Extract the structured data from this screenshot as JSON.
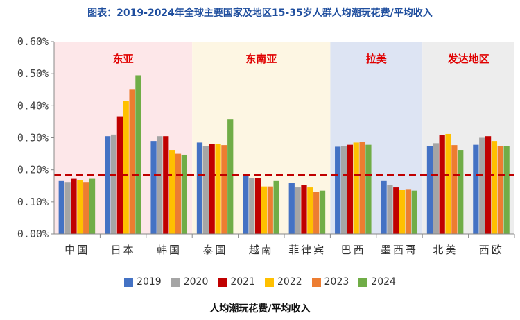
{
  "chart_data": {
    "type": "bar",
    "title": "图表：2019-2024年全球主要国家及地区15-35岁人群人均潮玩花费/平均收入",
    "xlabel": "人均潮玩花费/平均收入",
    "ylabel": "",
    "ylim": [
      0,
      0.6
    ],
    "yticks": [
      "0.00%",
      "0.10%",
      "0.20%",
      "0.30%",
      "0.40%",
      "0.50%",
      "0.60%"
    ],
    "categories": [
      "中国",
      "日本",
      "韩国",
      "泰国",
      "越南",
      "菲律宾",
      "巴西",
      "墨西哥",
      "北美",
      "西欧"
    ],
    "series": [
      {
        "name": "2019",
        "color": "#4472c4",
        "values": [
          0.165,
          0.305,
          0.29,
          0.285,
          0.18,
          0.16,
          0.272,
          0.165,
          0.275,
          0.278
        ]
      },
      {
        "name": "2020",
        "color": "#a5a5a5",
        "values": [
          0.162,
          0.31,
          0.305,
          0.275,
          0.175,
          0.145,
          0.275,
          0.152,
          0.283,
          0.3
        ]
      },
      {
        "name": "2021",
        "color": "#c00000",
        "values": [
          0.172,
          0.367,
          0.305,
          0.28,
          0.175,
          0.152,
          0.278,
          0.145,
          0.308,
          0.305
        ]
      },
      {
        "name": "2022",
        "color": "#ffc000",
        "values": [
          0.167,
          0.415,
          0.262,
          0.28,
          0.148,
          0.145,
          0.285,
          0.138,
          0.312,
          0.29
        ]
      },
      {
        "name": "2023",
        "color": "#ed7d31",
        "values": [
          0.162,
          0.452,
          0.25,
          0.277,
          0.148,
          0.13,
          0.288,
          0.14,
          0.277,
          0.275
        ]
      },
      {
        "name": "2024",
        "color": "#70ad47",
        "values": [
          0.172,
          0.495,
          0.247,
          0.357,
          0.165,
          0.135,
          0.278,
          0.135,
          0.262,
          0.275
        ]
      }
    ],
    "regions": [
      {
        "name": "东亚",
        "from": 0,
        "to": 2,
        "color": "#fde7e9"
      },
      {
        "name": "东南亚",
        "from": 3,
        "to": 5,
        "color": "#fdf6e3"
      },
      {
        "name": "拉美",
        "from": 6,
        "to": 7,
        "color": "#dde4f3"
      },
      {
        "name": "发达地区",
        "from": 8,
        "to": 9,
        "color": "#ededed"
      }
    ],
    "reference_line": {
      "value": 0.185,
      "color": "#c00000",
      "style": "dashed"
    },
    "region_label_color": "#e00000",
    "grid": false,
    "legend_position": "bottom"
  }
}
